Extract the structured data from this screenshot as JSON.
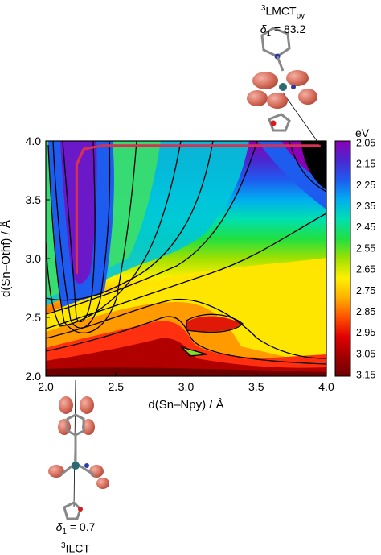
{
  "chart_data": {
    "type": "heatmap",
    "xlabel": "d(Sn–Npy) / Å",
    "ylabel": "d(Sn–Othf) / Å",
    "xlim": [
      2.0,
      4.0
    ],
    "ylim": [
      2.0,
      4.0
    ],
    "x_ticks": [
      "2.0",
      "2.5",
      "3.0",
      "3.5",
      "4.0"
    ],
    "y_ticks": [
      "2.0",
      "2.5",
      "3.0",
      "3.5",
      "4.0"
    ],
    "colorbar": {
      "unit": "eV",
      "range": [
        2.05,
        3.15
      ],
      "labels": [
        "2.05",
        "2.15",
        "2.25",
        "2.35",
        "2.45",
        "2.55",
        "2.65",
        "2.75",
        "2.85",
        "2.95",
        "3.05",
        "3.15"
      ],
      "colors": [
        "#8b00b4",
        "#4a28d0",
        "#1e5cf0",
        "#00aef0",
        "#00e0b0",
        "#20e040",
        "#a0e000",
        "#fff000",
        "#ffb000",
        "#ff5000",
        "#e00000",
        "#a00000",
        "#6e0000"
      ]
    },
    "contour_levels": [
      2.15,
      2.25,
      2.35,
      2.45,
      2.55,
      2.65,
      2.75,
      2.85,
      2.95,
      3.05
    ],
    "path": {
      "color": "#d83050",
      "points": [
        [
          2.22,
          2.88
        ],
        [
          2.22,
          3.8
        ],
        [
          2.27,
          3.93
        ],
        [
          2.4,
          3.96
        ],
        [
          3.95,
          3.96
        ]
      ]
    },
    "annotations": [
      {
        "state_main": "LMCT",
        "state_sub": "py",
        "state_sup": "3",
        "delta_label": "δ",
        "delta_sub": "1",
        "delta_value": "= 83.2",
        "position": "top-right"
      },
      {
        "state_main": "ILCT",
        "state_sub": "",
        "state_sup": "3",
        "delta_label": "δ",
        "delta_sub": "1",
        "delta_value": "= 0.7",
        "position": "bottom-left"
      }
    ]
  }
}
